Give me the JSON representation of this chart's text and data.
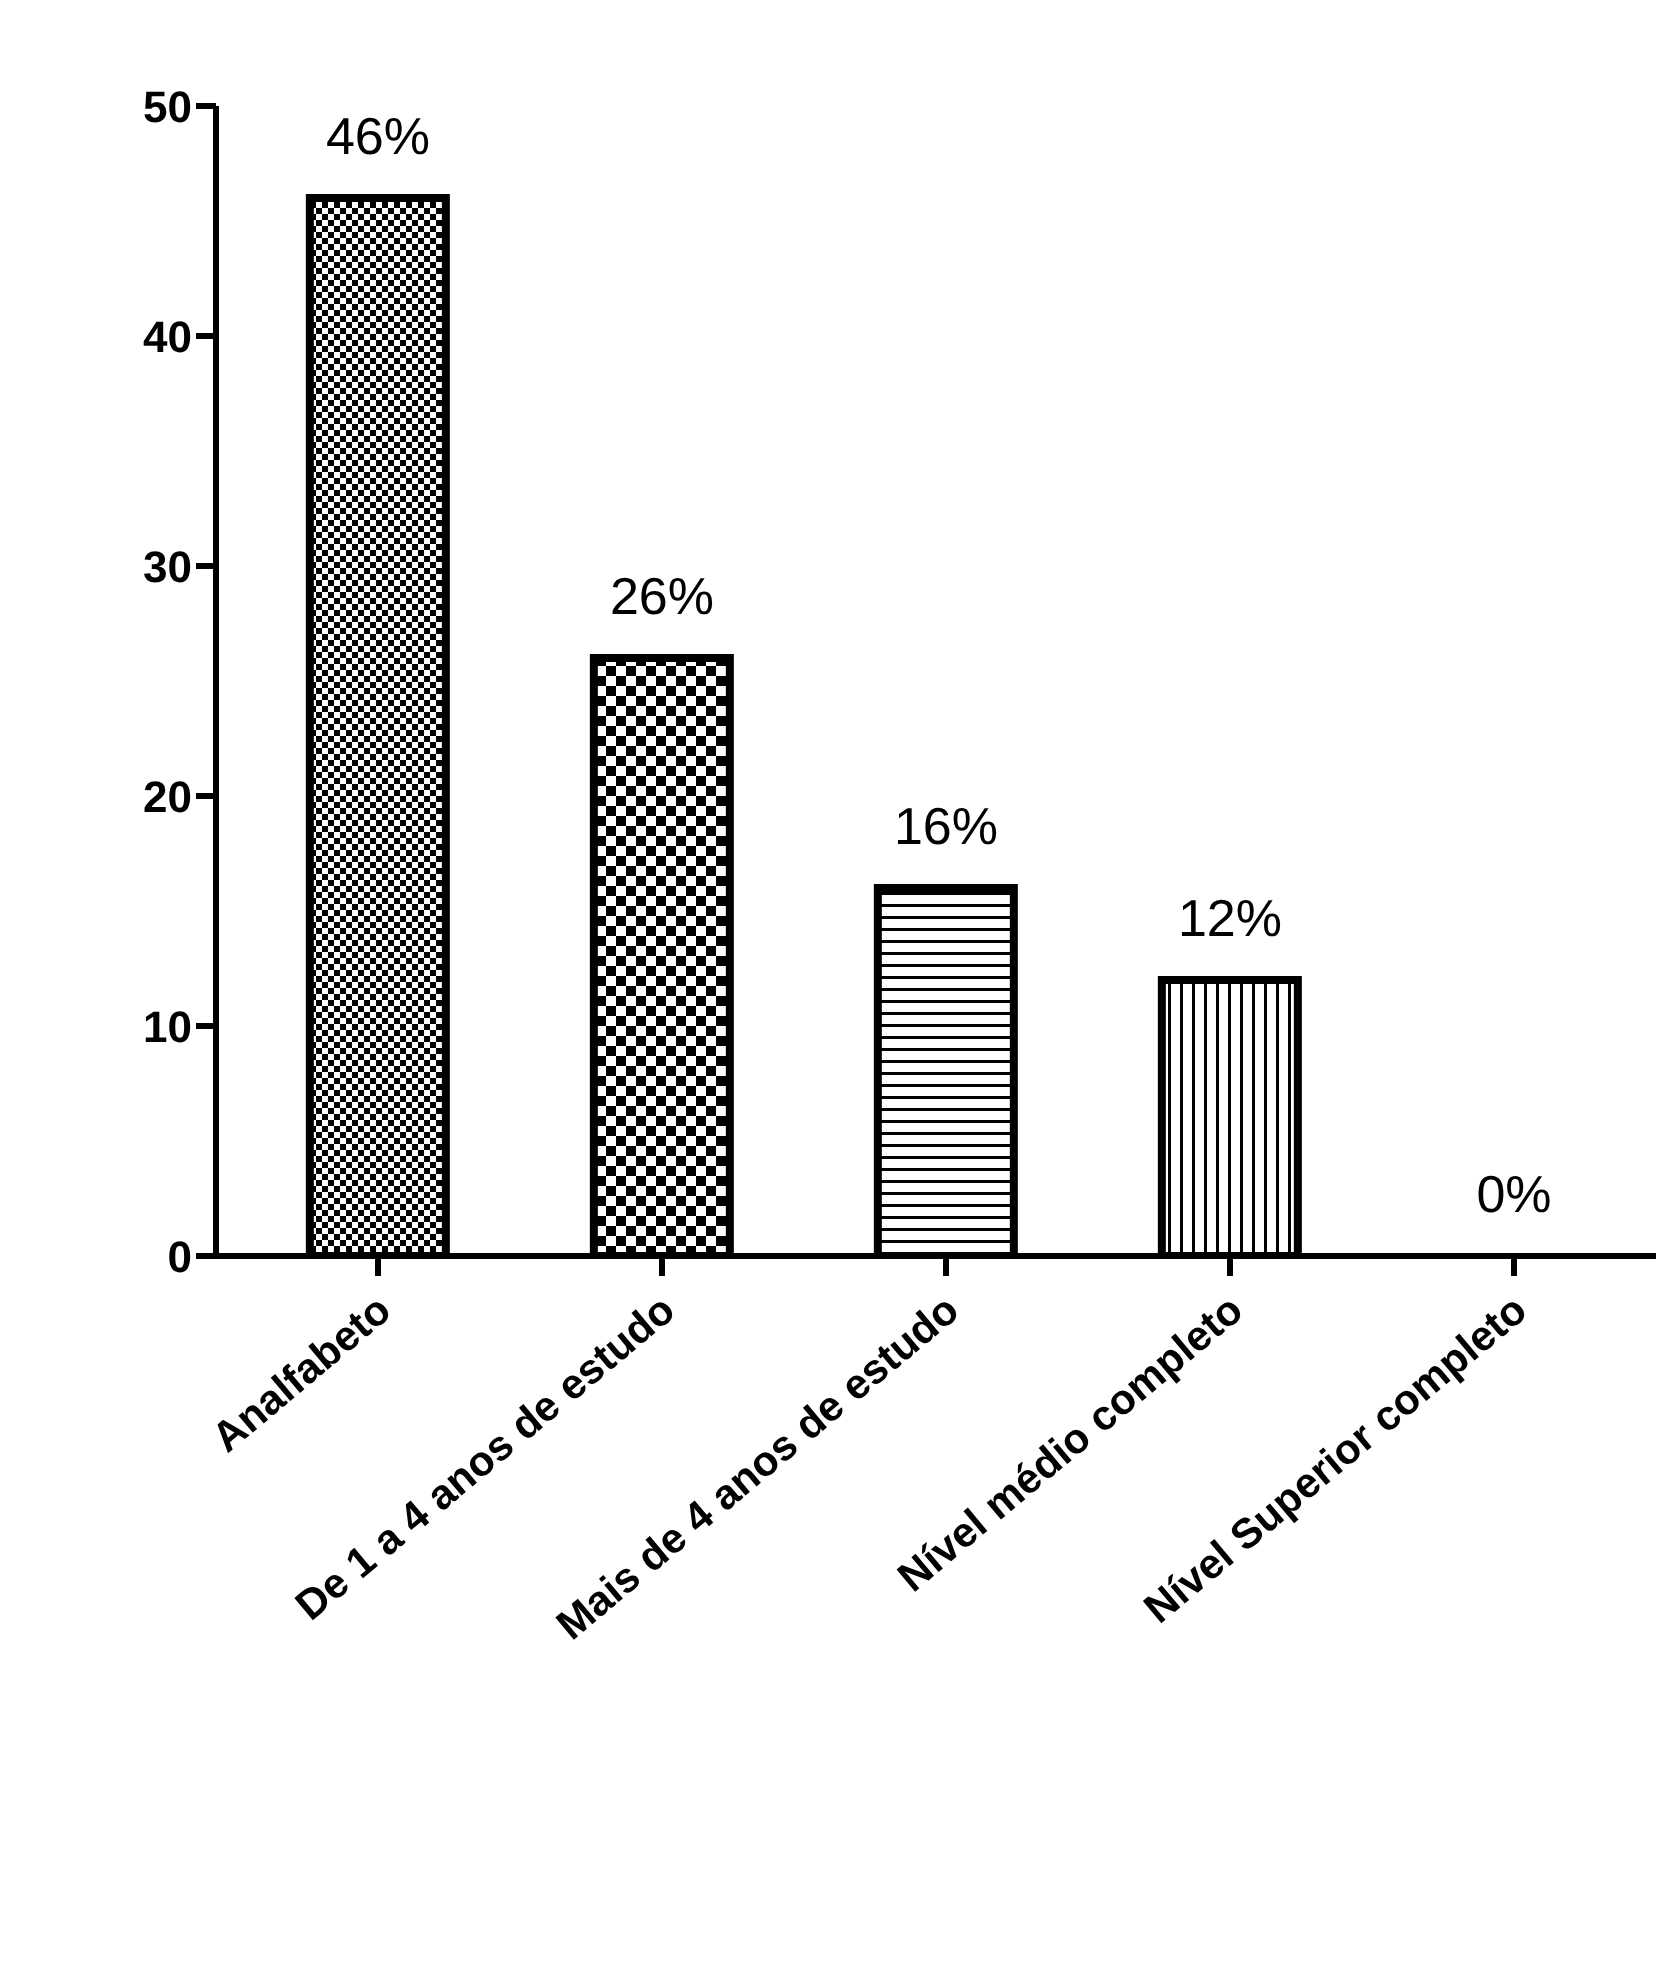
{
  "chart_data": {
    "type": "bar",
    "categories": [
      "Analfabeto",
      "De 1 a 4 anos de estudo",
      "Mais de 4 anos de estudo",
      "Nível médio completo",
      "Nível Superior completo"
    ],
    "values": [
      46,
      26,
      16,
      12,
      0
    ],
    "value_labels": [
      "46%",
      "26%",
      "16%",
      "12%",
      "0%"
    ],
    "color": "#000000",
    "ylim": [
      0,
      50
    ],
    "yticks": [
      0,
      10,
      20,
      30,
      40,
      50
    ],
    "grid": false,
    "legend": false
  }
}
